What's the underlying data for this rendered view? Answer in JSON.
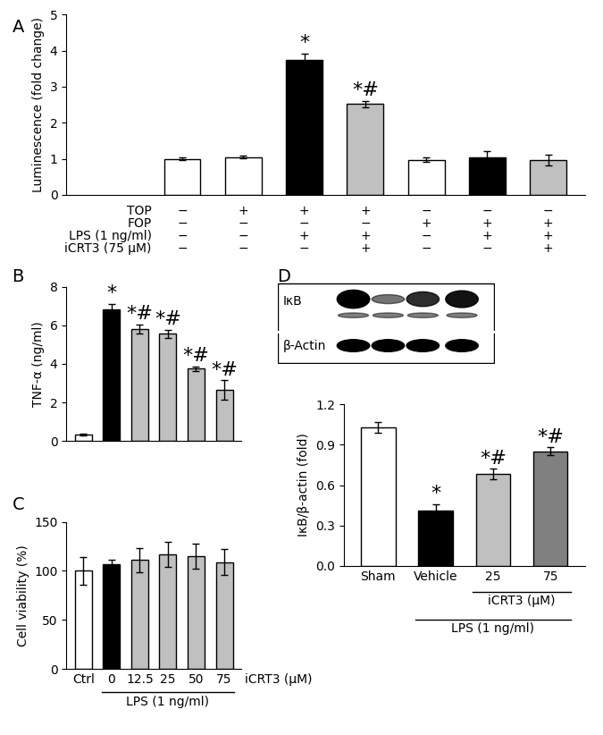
{
  "chart_data": [
    {
      "type": "bar",
      "title": "A",
      "categories": [
        null,
        null,
        null,
        null,
        null,
        null,
        null
      ],
      "values": [
        1.0,
        1.05,
        3.75,
        2.52,
        0.97,
        1.03,
        0.97
      ],
      "errors": [
        0.03,
        0.03,
        0.18,
        0.08,
        0.06,
        0.18,
        0.15
      ],
      "colors": [
        "#ffffff",
        "#ffffff",
        "#000000",
        "#c0c0c0",
        "#ffffff",
        "#000000",
        "#c0c0c0"
      ],
      "ylim": [
        0,
        5
      ],
      "yticks": [
        0,
        1,
        2,
        3,
        4,
        5
      ],
      "ylabel": "Luminescence (fold change)",
      "annotations": [
        null,
        null,
        "*",
        "*#",
        null,
        null,
        null
      ],
      "tick_labels": "y",
      "conditions": [
        {
          "label": "TOP",
          "signs": [
            "−",
            "+",
            "+",
            "+",
            "−",
            "−",
            "−"
          ]
        },
        {
          "label": "FOP",
          "signs": [
            "−",
            "−",
            "−",
            "−",
            "+",
            "+",
            "+"
          ]
        },
        {
          "label": "LPS (1 ng/ml)",
          "signs": [
            "−",
            "−",
            "+",
            "+",
            "−",
            "+",
            "+"
          ]
        },
        {
          "label": "iCRT3 (75 μM)",
          "signs": [
            "−",
            "−",
            "−",
            "+",
            "−",
            "−",
            "+"
          ]
        }
      ]
    },
    {
      "type": "bar",
      "title": "B",
      "categories": [
        null,
        null,
        null,
        null,
        null,
        null
      ],
      "values": [
        0.35,
        6.8,
        5.8,
        5.55,
        3.75,
        2.65
      ],
      "errors": [
        0.05,
        0.3,
        0.25,
        0.2,
        0.12,
        0.5
      ],
      "colors": [
        "#ffffff",
        "#000000",
        "#c0c0c0",
        "#c0c0c0",
        "#c0c0c0",
        "#c0c0c0"
      ],
      "ylim": [
        0,
        8
      ],
      "yticks": [
        0,
        2,
        4,
        6,
        8
      ],
      "ylabel": "TNF-α (ng/ml)",
      "annotations": [
        null,
        "*",
        "*#",
        "*#",
        "*#",
        "*#"
      ],
      "tick_labels": "y"
    },
    {
      "type": "bar",
      "title": "C",
      "categories": [
        "Ctrl",
        "0",
        "12.5",
        "25",
        "50",
        "75"
      ],
      "values": [
        100,
        107,
        111,
        117,
        115,
        109
      ],
      "errors": [
        14,
        4,
        12,
        13,
        13,
        13
      ],
      "colors": [
        "#ffffff",
        "#000000",
        "#c0c0c0",
        "#c0c0c0",
        "#c0c0c0",
        "#c0c0c0"
      ],
      "ylim": [
        0,
        150
      ],
      "yticks": [
        0,
        50,
        100,
        150
      ],
      "ylabel": "Cell viability (%)",
      "xlabel": "iCRT3 (μM)",
      "group_labels": [
        {
          "label": "LPS (1 ng/ml)",
          "from": 1,
          "to": 5
        }
      ]
    },
    {
      "type": "bar",
      "title": "D",
      "categories": [
        "Sham",
        "Vehicle",
        "25",
        "75"
      ],
      "values": [
        1.03,
        0.41,
        0.68,
        0.85
      ],
      "errors": [
        0.04,
        0.05,
        0.04,
        0.03
      ],
      "colors": [
        "#ffffff",
        "#000000",
        "#c0c0c0",
        "#808080"
      ],
      "ylim": [
        0,
        1.2
      ],
      "yticks": [
        {
          "value": 0,
          "label": "0.0"
        },
        {
          "value": 0.3,
          "label": "0.3"
        },
        {
          "value": 0.6,
          "label": "0.6"
        },
        {
          "value": 0.9,
          "label": "0.9"
        },
        {
          "value": 1.2,
          "label": "1.2"
        }
      ],
      "ylabel": "IκB/β-actin (fold)",
      "annotations": [
        null,
        "*",
        "*#",
        "*#"
      ],
      "group_labels": [
        {
          "label": "iCRT3 (μM)",
          "from": 2,
          "to": 3
        },
        {
          "label": "LPS (1 ng/ml)",
          "from": 1,
          "to": 3
        }
      ],
      "blot": {
        "labels": [
          "IκB",
          "β-Actin"
        ]
      }
    }
  ]
}
